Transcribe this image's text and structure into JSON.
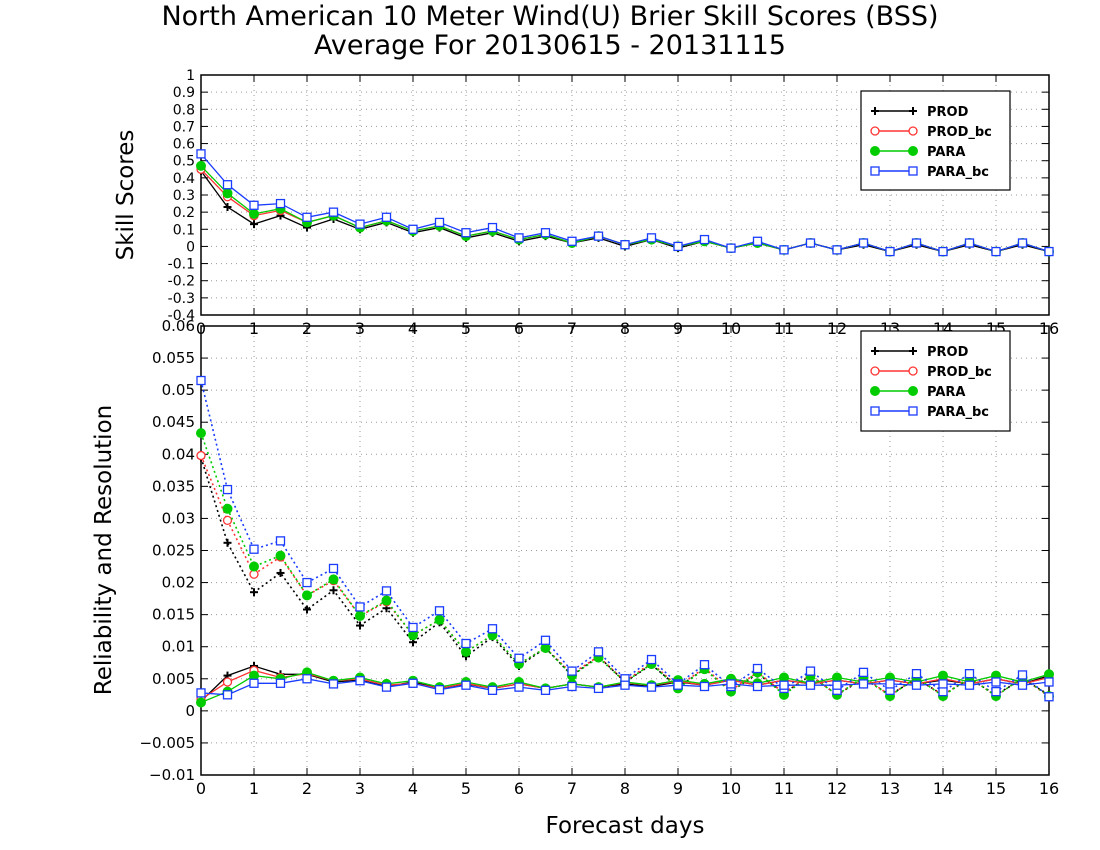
{
  "chart_data": [
    {
      "type": "line",
      "title": "North American 10 Meter Wind(U) Brier Skill Scores (BSS)",
      "subtitle": "Average For 20130615 - 20131115",
      "xlabel": "",
      "ylabel": "Skill Scores",
      "xlim": [
        0,
        16
      ],
      "ylim": [
        -0.4,
        1
      ],
      "x_ticks": [
        "0",
        "1",
        "2",
        "3",
        "4",
        "5",
        "6",
        "7",
        "8",
        "9",
        "10",
        "11",
        "12",
        "13",
        "14",
        "15",
        "16"
      ],
      "y_ticks": [
        "1",
        "0.9",
        "0.8",
        "0.7",
        "0.6",
        "0.5",
        "0.4",
        "0.3",
        "0.2",
        "0.1",
        "0",
        "-0.1",
        "-0.2",
        "-0.3",
        "-0.4"
      ],
      "grid": true,
      "legend": "top-right",
      "x": [
        0,
        0.5,
        1,
        1.5,
        2,
        2.5,
        3,
        3.5,
        4,
        4.5,
        5,
        5.5,
        6,
        6.5,
        7,
        7.5,
        8,
        8.5,
        9,
        9.5,
        10,
        10.5,
        11,
        11.5,
        12,
        12.5,
        13,
        13.5,
        14,
        14.5,
        15,
        15.5,
        16
      ],
      "series": [
        {
          "name": "PROD",
          "color": "#000000",
          "marker": "plus",
          "line": "solid",
          "values": [
            0.44,
            0.23,
            0.13,
            0.18,
            0.11,
            0.16,
            0.1,
            0.14,
            0.08,
            0.11,
            0.05,
            0.08,
            0.03,
            0.06,
            0.02,
            0.05,
            0.0,
            0.04,
            -0.01,
            0.03,
            -0.01,
            0.02,
            -0.02,
            0.02,
            -0.02,
            0.01,
            -0.03,
            0.01,
            -0.03,
            0.01,
            -0.03,
            0.01,
            -0.03
          ]
        },
        {
          "name": "PROD_bc",
          "color": "#ff3333",
          "marker": "open-circle",
          "line": "solid",
          "values": [
            0.45,
            0.29,
            0.18,
            0.21,
            0.14,
            0.18,
            0.11,
            0.15,
            0.09,
            0.12,
            0.06,
            0.09,
            0.04,
            0.07,
            0.02,
            0.06,
            0.01,
            0.04,
            0.0,
            0.03,
            -0.01,
            0.02,
            -0.02,
            0.02,
            -0.02,
            0.02,
            -0.03,
            0.02,
            -0.03,
            0.02,
            -0.03,
            0.02,
            -0.03
          ]
        },
        {
          "name": "PARA",
          "color": "#00cc00",
          "marker": "filled-circle",
          "line": "solid",
          "values": [
            0.47,
            0.31,
            0.19,
            0.22,
            0.14,
            0.18,
            0.11,
            0.15,
            0.09,
            0.12,
            0.06,
            0.09,
            0.04,
            0.07,
            0.02,
            0.06,
            0.01,
            0.04,
            0.0,
            0.03,
            -0.01,
            0.02,
            -0.02,
            0.02,
            -0.02,
            0.02,
            -0.03,
            0.02,
            -0.03,
            0.02,
            -0.03,
            0.02,
            -0.03
          ]
        },
        {
          "name": "PARA_bc",
          "color": "#1a3cff",
          "marker": "open-square",
          "line": "solid",
          "values": [
            0.54,
            0.36,
            0.24,
            0.25,
            0.17,
            0.2,
            0.13,
            0.17,
            0.1,
            0.14,
            0.08,
            0.11,
            0.05,
            0.08,
            0.03,
            0.06,
            0.01,
            0.05,
            0.0,
            0.04,
            -0.01,
            0.03,
            -0.02,
            0.02,
            -0.02,
            0.02,
            -0.03,
            0.02,
            -0.03,
            0.02,
            -0.03,
            0.02,
            -0.03
          ]
        }
      ]
    },
    {
      "type": "line",
      "title": "",
      "xlabel": "Forecast days",
      "ylabel": "Reliability and Resolution",
      "xlim": [
        0,
        16
      ],
      "ylim": [
        -0.01,
        0.06
      ],
      "x_ticks": [
        "0",
        "1",
        "2",
        "3",
        "4",
        "5",
        "6",
        "7",
        "8",
        "9",
        "10",
        "11",
        "12",
        "13",
        "14",
        "15",
        "16"
      ],
      "y_ticks": [
        "0.06",
        "0.055",
        "0.05",
        "0.045",
        "0.04",
        "0.035",
        "0.03",
        "0.025",
        "0.02",
        "0.015",
        "0.01",
        "0.005",
        "0",
        "−0.005",
        "−0.01"
      ],
      "grid": true,
      "legend": "top-right",
      "x": [
        0,
        0.5,
        1,
        1.5,
        2,
        2.5,
        3,
        3.5,
        4,
        4.5,
        5,
        5.5,
        6,
        6.5,
        7,
        7.5,
        8,
        8.5,
        9,
        9.5,
        10,
        10.5,
        11,
        11.5,
        12,
        12.5,
        13,
        13.5,
        14,
        14.5,
        15,
        15.5,
        16
      ],
      "series": [
        {
          "name": "PROD",
          "color": "#000000",
          "marker": "plus",
          "line": "dotted",
          "values": [
            0.0395,
            0.0262,
            0.0185,
            0.0215,
            0.0158,
            0.0188,
            0.0133,
            0.016,
            0.0107,
            0.0138,
            0.0085,
            0.0115,
            0.007,
            0.0098,
            0.0055,
            0.0085,
            0.0045,
            0.0072,
            0.0037,
            0.0065,
            0.003,
            0.0058,
            0.0028,
            0.0055,
            0.0025,
            0.005,
            0.0025,
            0.005,
            0.0025,
            0.005,
            0.0025,
            0.005,
            0.0025
          ]
        },
        {
          "name": "PROD",
          "color": "#000000",
          "marker": "plus",
          "line": "solid",
          "values": [
            0.0015,
            0.0055,
            0.007,
            0.0057,
            0.0057,
            0.0045,
            0.0048,
            0.0038,
            0.0045,
            0.0035,
            0.0042,
            0.0035,
            0.0042,
            0.0035,
            0.0042,
            0.0037,
            0.0042,
            0.0038,
            0.0045,
            0.004,
            0.0048,
            0.004,
            0.0048,
            0.0042,
            0.0048,
            0.0042,
            0.0048,
            0.0042,
            0.0048,
            0.0042,
            0.005,
            0.0042,
            0.0055
          ]
        },
        {
          "name": "PROD_bc",
          "color": "#ff3333",
          "marker": "open-circle",
          "line": "dotted",
          "values": [
            0.0398,
            0.0297,
            0.0213,
            0.024,
            0.018,
            0.0203,
            0.0148,
            0.017,
            0.0118,
            0.0142,
            0.0092,
            0.0118,
            0.0073,
            0.0098,
            0.0058,
            0.0085,
            0.0046,
            0.0075,
            0.0038,
            0.0067,
            0.0032,
            0.006,
            0.0028,
            0.0056,
            0.0025,
            0.0053,
            0.0024,
            0.0052,
            0.0024,
            0.0052,
            0.0023,
            0.0052,
            0.0022
          ]
        },
        {
          "name": "PROD_bc",
          "color": "#ff3333",
          "marker": "open-circle",
          "line": "solid",
          "values": [
            0.0018,
            0.0045,
            0.0063,
            0.0052,
            0.0058,
            0.0047,
            0.005,
            0.004,
            0.0043,
            0.0035,
            0.0043,
            0.0035,
            0.0042,
            0.0035,
            0.0042,
            0.0037,
            0.0044,
            0.004,
            0.0046,
            0.004,
            0.0048,
            0.004,
            0.0048,
            0.0042,
            0.0048,
            0.0042,
            0.0048,
            0.0042,
            0.005,
            0.0042,
            0.005,
            0.0042,
            0.0052
          ]
        },
        {
          "name": "PARA",
          "color": "#00cc00",
          "marker": "filled-circle",
          "line": "dotted",
          "values": [
            0.0433,
            0.0315,
            0.0225,
            0.0242,
            0.018,
            0.0205,
            0.0148,
            0.0172,
            0.0118,
            0.0142,
            0.0092,
            0.0118,
            0.0073,
            0.0098,
            0.0055,
            0.0083,
            0.0045,
            0.0073,
            0.0035,
            0.0065,
            0.003,
            0.006,
            0.0025,
            0.0055,
            0.0025,
            0.0052,
            0.0023,
            0.0052,
            0.0023,
            0.0052,
            0.0023,
            0.0052,
            0.0023
          ]
        },
        {
          "name": "PARA",
          "color": "#00cc00",
          "marker": "filled-circle",
          "line": "solid",
          "values": [
            0.0013,
            0.003,
            0.0055,
            0.005,
            0.006,
            0.0047,
            0.0052,
            0.0042,
            0.0047,
            0.0037,
            0.0045,
            0.0037,
            0.0045,
            0.0035,
            0.0042,
            0.0037,
            0.0045,
            0.004,
            0.0048,
            0.0042,
            0.005,
            0.0043,
            0.0052,
            0.0043,
            0.0052,
            0.0045,
            0.0052,
            0.0045,
            0.0055,
            0.0045,
            0.0055,
            0.0045,
            0.0057
          ]
        },
        {
          "name": "PARA_bc",
          "color": "#1a3cff",
          "marker": "open-square",
          "line": "dotted",
          "values": [
            0.0515,
            0.0345,
            0.0252,
            0.0265,
            0.02,
            0.0222,
            0.0162,
            0.0187,
            0.013,
            0.0156,
            0.0105,
            0.0128,
            0.0082,
            0.011,
            0.0062,
            0.0092,
            0.005,
            0.008,
            0.0042,
            0.0072,
            0.0038,
            0.0066,
            0.0035,
            0.0062,
            0.0032,
            0.006,
            0.0032,
            0.0058,
            0.003,
            0.0058,
            0.003,
            0.0056,
            0.0022
          ]
        },
        {
          "name": "PARA_bc",
          "color": "#1a3cff",
          "marker": "open-square",
          "line": "solid",
          "values": [
            0.0028,
            0.0025,
            0.0043,
            0.0043,
            0.005,
            0.0042,
            0.0047,
            0.0037,
            0.0043,
            0.0033,
            0.004,
            0.0032,
            0.0037,
            0.0032,
            0.0038,
            0.0035,
            0.004,
            0.0037,
            0.004,
            0.0038,
            0.0042,
            0.0038,
            0.004,
            0.004,
            0.004,
            0.0042,
            0.0042,
            0.004,
            0.0042,
            0.004,
            0.0045,
            0.004,
            0.0045
          ]
        }
      ]
    }
  ]
}
